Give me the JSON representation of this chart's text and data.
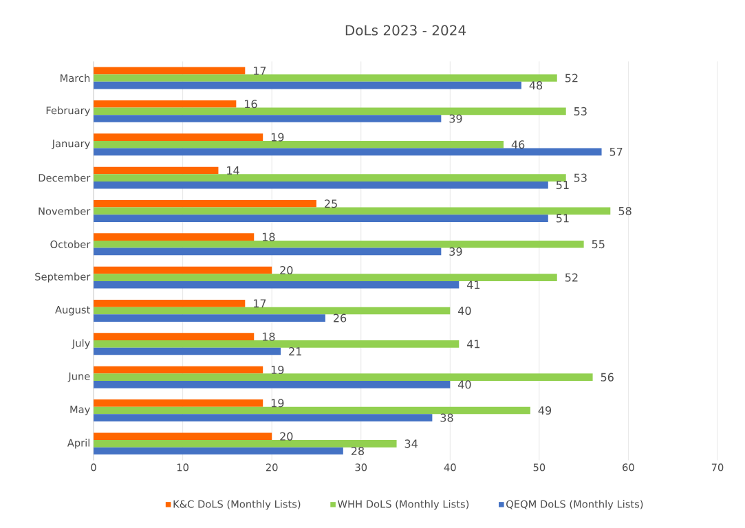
{
  "chart_data": {
    "type": "bar",
    "orientation": "horizontal",
    "title": "DoLs 2023 - 2024",
    "categories": [
      "March",
      "February",
      "January",
      "December",
      "November",
      "October",
      "September",
      "August",
      "July",
      "June",
      "May",
      "April"
    ],
    "series": [
      {
        "name": "K&C DoLS (Monthly Lists)",
        "color": "#ff6600",
        "values": [
          17,
          16,
          19,
          14,
          25,
          18,
          20,
          17,
          18,
          19,
          19,
          20
        ]
      },
      {
        "name": "WHH DoLS (Monthly Lists)",
        "color": "#92d050",
        "values": [
          52,
          53,
          46,
          53,
          58,
          55,
          52,
          40,
          41,
          56,
          49,
          34
        ]
      },
      {
        "name": "QEQM DoLS (Monthly Lists)",
        "color": "#4472c4",
        "values": [
          48,
          39,
          57,
          51,
          51,
          39,
          41,
          26,
          21,
          40,
          38,
          28
        ]
      }
    ],
    "xlim": [
      0,
      70
    ],
    "xticks": [
      0,
      10,
      20,
      30,
      40,
      50,
      60,
      70
    ],
    "grid": "x",
    "legend": "bottom",
    "data_labels": true
  }
}
